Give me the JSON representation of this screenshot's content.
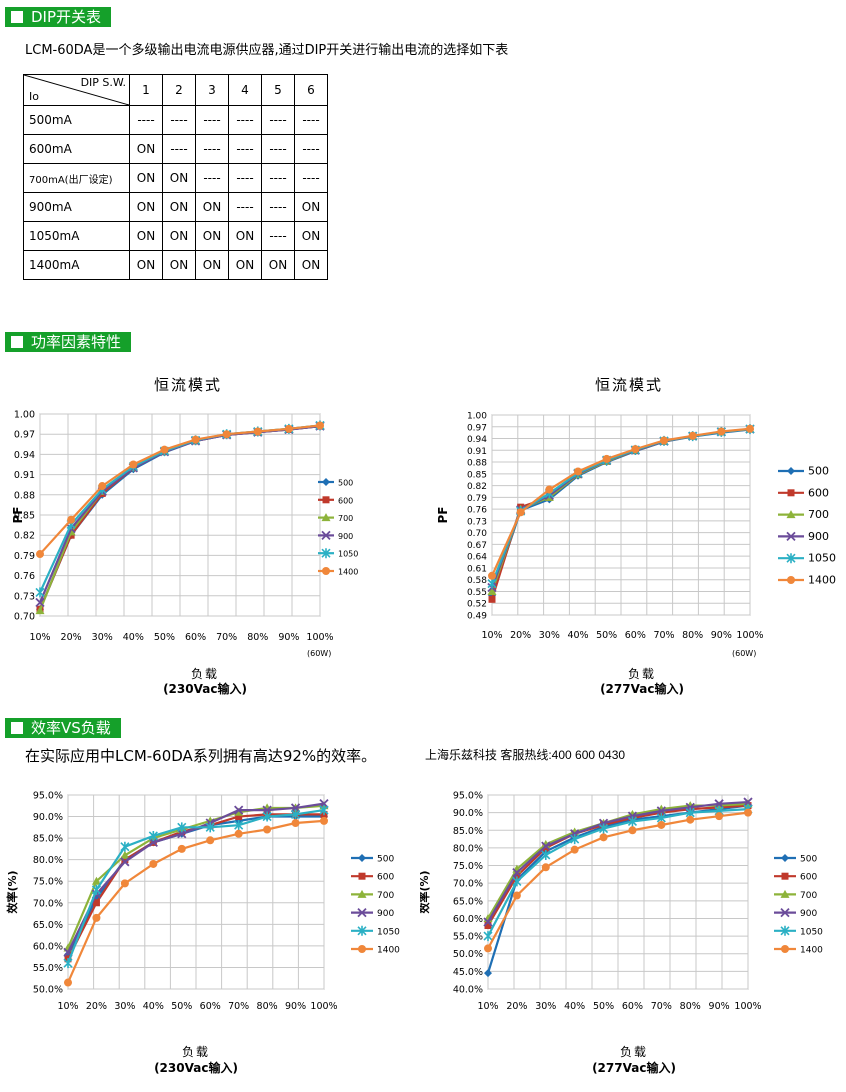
{
  "sections": {
    "dip": "DIP开关表",
    "pf": "功率因素特性",
    "eff": "效率VS负载"
  },
  "dip_intro": "LCM-60DA是一个多级输出电流电源供应器,通过DIP开关进行输出电流的选择如下表",
  "dip_table": {
    "header_dip": "DIP S.W.",
    "header_io": "Io",
    "columns": [
      "1",
      "2",
      "3",
      "4",
      "5",
      "6"
    ],
    "rows": [
      {
        "label": "500mA",
        "cells": [
          "----",
          "----",
          "----",
          "----",
          "----",
          "----"
        ]
      },
      {
        "label": "600mA",
        "cells": [
          "ON",
          "----",
          "----",
          "----",
          "----",
          "----"
        ]
      },
      {
        "label": "700mA(出厂设定)",
        "cells": [
          "ON",
          "ON",
          "----",
          "----",
          "----",
          "----"
        ]
      },
      {
        "label": "900mA",
        "cells": [
          "ON",
          "ON",
          "ON",
          "----",
          "----",
          "ON"
        ]
      },
      {
        "label": "1050mA",
        "cells": [
          "ON",
          "ON",
          "ON",
          "ON",
          "----",
          "ON"
        ]
      },
      {
        "label": "1400mA",
        "cells": [
          "ON",
          "ON",
          "ON",
          "ON",
          "ON",
          "ON"
        ]
      }
    ]
  },
  "eff_intro": "在实际应用中LCM-60DA系列拥有高达92%的效率。",
  "hotline": "上海乐兹科技 客服热线:400 600 0430",
  "colors": {
    "section_bg": "#15a02a",
    "500": "#1f6fb4",
    "600": "#c0392b",
    "700": "#8db33a",
    "900": "#6b4c9a",
    "1050": "#2bb0c4",
    "1400": "#f0873a"
  },
  "chart_data": [
    {
      "type": "line",
      "title": "恒流模式",
      "ylabel": "PF",
      "xlabel": "负载",
      "xlabel_sub": "(230Vac输入)",
      "note": "(60W)",
      "categories": [
        "10%",
        "20%",
        "30%",
        "40%",
        "50%",
        "60%",
        "70%",
        "80%",
        "90%",
        "100%"
      ],
      "yticks": [
        "0.70",
        "0.73",
        "0.76",
        "0.79",
        "0.82",
        "0.85",
        "0.88",
        "0.91",
        "0.94",
        "0.97",
        "1.00"
      ],
      "ylim": [
        0.7,
        1.0
      ],
      "legend": "right",
      "series": [
        {
          "name": "500",
          "values": [
            0.71,
            0.82,
            0.88,
            0.918,
            0.943,
            0.96,
            0.969,
            0.973,
            0.977,
            0.982
          ]
        },
        {
          "name": "600",
          "values": [
            0.71,
            0.82,
            0.882,
            0.92,
            0.944,
            0.96,
            0.969,
            0.973,
            0.977,
            0.982
          ]
        },
        {
          "name": "700",
          "values": [
            0.708,
            0.825,
            0.885,
            0.921,
            0.945,
            0.961,
            0.97,
            0.974,
            0.978,
            0.983
          ]
        },
        {
          "name": "900",
          "values": [
            0.72,
            0.83,
            0.885,
            0.92,
            0.944,
            0.96,
            0.969,
            0.973,
            0.977,
            0.982
          ]
        },
        {
          "name": "1050",
          "values": [
            0.735,
            0.836,
            0.888,
            0.922,
            0.945,
            0.961,
            0.97,
            0.974,
            0.978,
            0.983
          ]
        },
        {
          "name": "1400",
          "values": [
            0.792,
            0.843,
            0.893,
            0.925,
            0.947,
            0.962,
            0.97,
            0.974,
            0.978,
            0.983
          ]
        }
      ]
    },
    {
      "type": "line",
      "title": "恒流模式",
      "ylabel": "PF",
      "xlabel": "负载",
      "xlabel_sub": "(277Vac输入)",
      "note": "(60W)",
      "categories": [
        "10%",
        "20%",
        "30%",
        "40%",
        "50%",
        "60%",
        "70%",
        "80%",
        "90%",
        "100%"
      ],
      "yticks": [
        "0.49",
        "0.52",
        "0.55",
        "0.58",
        "0.61",
        "0.64",
        "0.67",
        "0.70",
        "0.73",
        "0.76",
        "0.79",
        "0.82",
        "0.85",
        "0.88",
        "0.91",
        "0.94",
        "0.97",
        "1.00"
      ],
      "ylim": [
        0.49,
        1.0
      ],
      "legend": "right",
      "series": [
        {
          "name": "500",
          "values": [
            0.54,
            0.757,
            0.785,
            0.845,
            0.88,
            0.908,
            0.932,
            0.945,
            0.955,
            0.963
          ]
        },
        {
          "name": "600",
          "values": [
            0.53,
            0.765,
            0.79,
            0.848,
            0.882,
            0.909,
            0.933,
            0.946,
            0.957,
            0.964
          ]
        },
        {
          "name": "700",
          "values": [
            0.55,
            0.76,
            0.79,
            0.848,
            0.882,
            0.91,
            0.933,
            0.946,
            0.957,
            0.964
          ]
        },
        {
          "name": "900",
          "values": [
            0.56,
            0.758,
            0.795,
            0.85,
            0.884,
            0.91,
            0.933,
            0.946,
            0.957,
            0.964
          ]
        },
        {
          "name": "1050",
          "values": [
            0.57,
            0.755,
            0.8,
            0.852,
            0.885,
            0.911,
            0.934,
            0.946,
            0.957,
            0.964
          ]
        },
        {
          "name": "1400",
          "values": [
            0.59,
            0.752,
            0.81,
            0.856,
            0.888,
            0.913,
            0.935,
            0.947,
            0.958,
            0.965
          ]
        }
      ]
    },
    {
      "type": "line",
      "title": "",
      "ylabel": "效率(%)",
      "xlabel": "负载",
      "xlabel_sub": "(230Vac输入)",
      "categories": [
        "10%",
        "20%",
        "30%",
        "40%",
        "50%",
        "60%",
        "70%",
        "80%",
        "90%",
        "100%"
      ],
      "yticks": [
        "50.0%",
        "55.0%",
        "60.0%",
        "65.0%",
        "70.0%",
        "75.0%",
        "80.0%",
        "85.0%",
        "90.0%",
        "95.0%"
      ],
      "ylim": [
        50.0,
        95.0
      ],
      "legend": "right",
      "series": [
        {
          "name": "500",
          "values": [
            58.0,
            71.0,
            80.0,
            84.0,
            86.0,
            88.0,
            89.0,
            90.0,
            90.0,
            90.0
          ]
        },
        {
          "name": "600",
          "values": [
            57.0,
            70.0,
            80.0,
            84.0,
            86.5,
            88.0,
            90.0,
            90.5,
            90.5,
            90.5
          ]
        },
        {
          "name": "700",
          "values": [
            59.5,
            75.0,
            81.0,
            85.0,
            87.0,
            89.0,
            91.0,
            92.0,
            92.0,
            92.5
          ]
        },
        {
          "name": "900",
          "values": [
            58.5,
            72.0,
            79.5,
            84.0,
            86.0,
            88.5,
            91.5,
            91.5,
            92.0,
            93.0
          ]
        },
        {
          "name": "1050",
          "values": [
            56.0,
            73.0,
            83.0,
            85.5,
            87.5,
            87.5,
            88.0,
            90.0,
            90.5,
            91.5
          ]
        },
        {
          "name": "1400",
          "values": [
            51.5,
            66.5,
            74.5,
            79.0,
            82.5,
            84.5,
            86.0,
            87.0,
            88.5,
            89.0
          ]
        }
      ]
    },
    {
      "type": "line",
      "title": "",
      "ylabel": "效率(%)",
      "xlabel": "负载",
      "xlabel_sub": "(277Vac输入)",
      "categories": [
        "10%",
        "20%",
        "30%",
        "40%",
        "50%",
        "60%",
        "70%",
        "80%",
        "90%",
        "100%"
      ],
      "yticks": [
        "40.0%",
        "45.0%",
        "50.0%",
        "55.0%",
        "60.0%",
        "65.0%",
        "70.0%",
        "75.0%",
        "80.0%",
        "85.0%",
        "90.0%",
        "95.0%"
      ],
      "ylim": [
        40.0,
        95.0
      ],
      "legend": "right",
      "series": [
        {
          "name": "500",
          "values": [
            44.5,
            71.0,
            79.0,
            83.0,
            86.0,
            88.0,
            89.0,
            90.0,
            91.0,
            92.0
          ]
        },
        {
          "name": "600",
          "values": [
            58.0,
            72.0,
            80.0,
            84.0,
            86.5,
            88.5,
            90.0,
            91.0,
            91.5,
            92.0
          ]
        },
        {
          "name": "700",
          "values": [
            60.0,
            74.0,
            81.0,
            84.5,
            87.0,
            89.5,
            91.0,
            92.0,
            92.0,
            92.5
          ]
        },
        {
          "name": "900",
          "values": [
            59.0,
            73.0,
            80.5,
            84.0,
            87.0,
            89.0,
            90.5,
            91.5,
            92.5,
            93.0
          ]
        },
        {
          "name": "1050",
          "values": [
            55.0,
            70.5,
            78.0,
            82.5,
            85.5,
            87.5,
            88.5,
            90.0,
            90.5,
            91.0
          ]
        },
        {
          "name": "1400",
          "values": [
            51.5,
            66.5,
            74.5,
            79.5,
            83.0,
            85.0,
            86.5,
            88.0,
            89.0,
            90.0
          ]
        }
      ]
    }
  ]
}
